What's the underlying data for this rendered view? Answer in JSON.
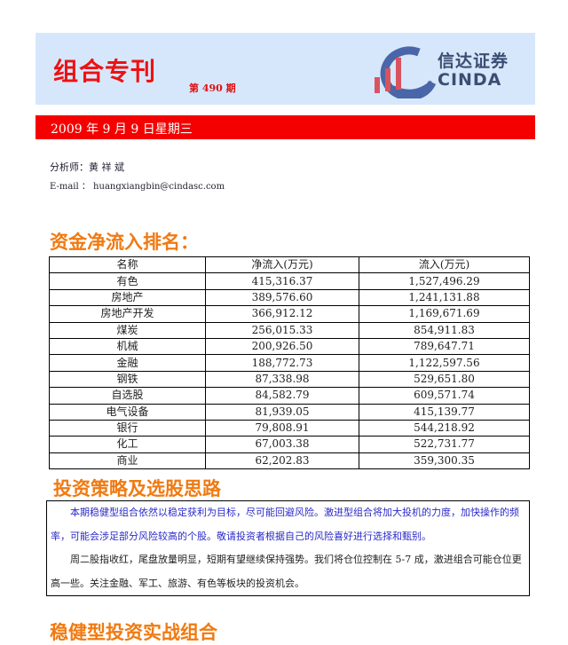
{
  "header": {
    "title": "组合专刊",
    "issue": "第 490 期",
    "logo_cn": "信达证券",
    "logo_en": "CINDA",
    "brand_colors": {
      "band": "#d6e7fb",
      "red": "#f50000",
      "accent": "#f07a12"
    }
  },
  "date": "2009 年 9 月 9 日星期三",
  "analyst": "分析师：黄 祥 斌",
  "email": "E-mail ： huangxiangbin@cindasc.com",
  "section1": {
    "title": "资金净流入排名：",
    "columns": [
      "名称",
      "净流入(万元)",
      "流入(万元)"
    ],
    "rows": [
      [
        "有色",
        "415,316.37",
        "1,527,496.29"
      ],
      [
        "房地产",
        "389,576.60",
        "1,241,131.88"
      ],
      [
        "房地产开发",
        "366,912.12",
        "1,169,671.69"
      ],
      [
        "煤炭",
        "256,015.33",
        "854,911.83"
      ],
      [
        "机械",
        "200,926.50",
        "789,647.71"
      ],
      [
        "金融",
        "188,772.73",
        "1,122,597.56"
      ],
      [
        "钢铁",
        "87,338.98",
        "529,651.80"
      ],
      [
        "自选股",
        "84,582.79",
        "609,571.74"
      ],
      [
        "电气设备",
        "81,939.05",
        "415,139.77"
      ],
      [
        "银行",
        "79,808.91",
        "544,218.92"
      ],
      [
        "化工",
        "67,003.38",
        "522,731.77"
      ],
      [
        "商业",
        "62,202.83",
        "359,300.35"
      ]
    ]
  },
  "section2": {
    "title": "投资策略及选股思路",
    "p1": "本期稳健型组合依然以稳定获利为目标，尽可能回避风险。激进型组合将加大投机的力度，加快操作的频率，可能会涉足部分风险较高的个股。敬请投资者根据自己的风险喜好进行选择和甄别。",
    "p2": "周二股指收红，尾盘放量明显，短期有望继续保持强势。我们将仓位控制在 5-7 成，激进组合可能仓位更高一些。关注金融、军工、旅游、有色等板块的投资机会。"
  },
  "section3": {
    "title": "稳健型投资实战组合"
  }
}
